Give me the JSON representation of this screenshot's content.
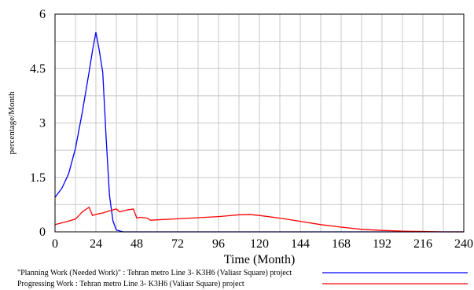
{
  "chart_data": {
    "type": "line",
    "xlabel": "Time (Month)",
    "ylabel": "percentage/Month",
    "xlim": [
      0,
      240
    ],
    "ylim": [
      0,
      6
    ],
    "x_ticks": [
      "0",
      "24",
      "48",
      "72",
      "96",
      "120",
      "144",
      "168",
      "192",
      "216",
      "240"
    ],
    "y_ticks": [
      "0",
      "1.5",
      "3",
      "4.5",
      "6"
    ],
    "grid": true,
    "legend_position": "bottom",
    "series": [
      {
        "name": "\"Planning Work (Needed Work)\" : Tehran metro Line 3- K3H6 (Valiasr Square) project",
        "color": "#0000ff",
        "x": [
          0,
          4,
          8,
          12,
          16,
          20,
          22,
          24,
          26,
          28,
          30,
          32,
          34,
          36,
          40,
          48,
          240
        ],
        "y": [
          0.95,
          1.2,
          1.6,
          2.3,
          3.3,
          4.4,
          5.0,
          5.5,
          5.0,
          4.4,
          2.6,
          1.0,
          0.3,
          0.05,
          0,
          0,
          0
        ]
      },
      {
        "name": "Progressing Work : Tehran metro Line 3- K3H6 (Valiasr Square) project",
        "color": "#ff0000",
        "x": [
          0,
          6,
          12,
          16,
          20,
          22,
          24,
          28,
          32,
          36,
          38,
          42,
          46,
          48,
          50,
          54,
          56,
          72,
          96,
          108,
          114,
          120,
          132,
          144,
          156,
          168,
          180,
          192,
          204,
          216,
          228,
          240
        ],
        "y": [
          0.2,
          0.27,
          0.35,
          0.55,
          0.68,
          0.45,
          0.48,
          0.52,
          0.58,
          0.63,
          0.55,
          0.6,
          0.63,
          0.38,
          0.4,
          0.38,
          0.32,
          0.36,
          0.42,
          0.47,
          0.48,
          0.45,
          0.38,
          0.29,
          0.2,
          0.13,
          0.07,
          0.04,
          0.02,
          0.01,
          0.0,
          0.0
        ]
      }
    ]
  }
}
